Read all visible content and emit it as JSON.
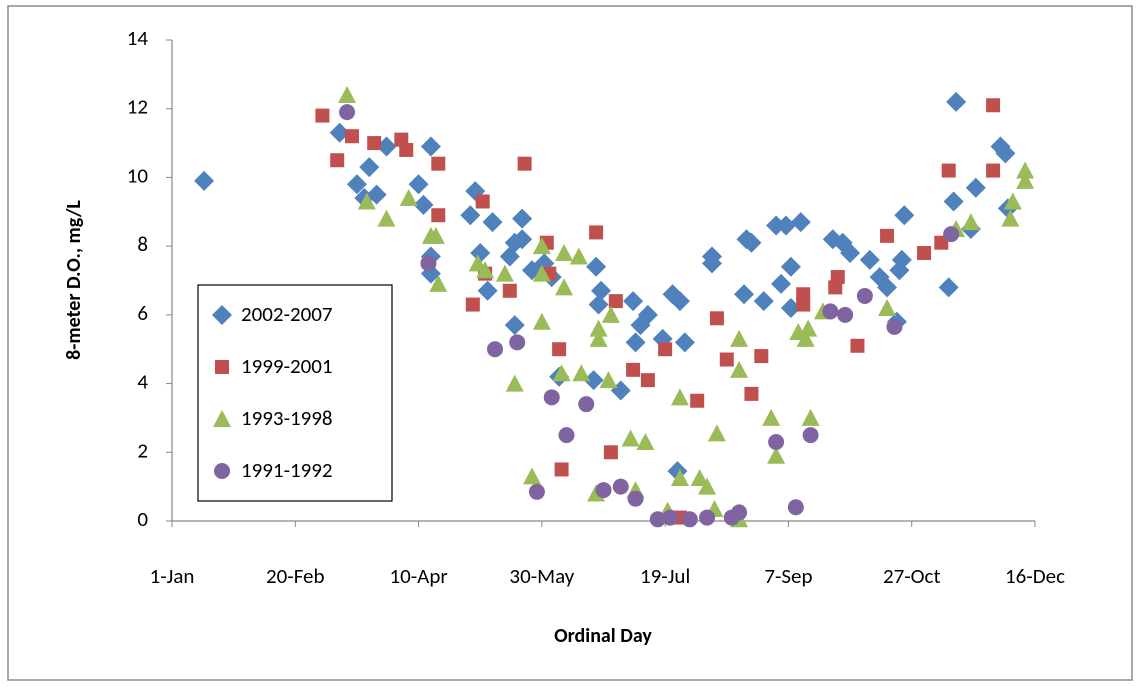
{
  "chart_data": {
    "type": "scatter",
    "x_label": "Ordinal Day",
    "y_label": "8-meter D.O., mg/L",
    "xlim": [
      1,
      351
    ],
    "ylim": [
      0,
      14
    ],
    "xticks": [
      {
        "value": 1,
        "label": "1-Jan"
      },
      {
        "value": 51,
        "label": "20-Feb"
      },
      {
        "value": 101,
        "label": "10-Apr"
      },
      {
        "value": 151,
        "label": "30-May"
      },
      {
        "value": 201,
        "label": "19-Jul"
      },
      {
        "value": 251,
        "label": "7-Sep"
      },
      {
        "value": 301,
        "label": "27-Oct"
      },
      {
        "value": 351,
        "label": "16-Dec"
      }
    ],
    "yticks": [
      0,
      2,
      4,
      6,
      8,
      10,
      12,
      14
    ],
    "grid": false,
    "legend": "left",
    "series": [
      {
        "name": "2002-2007",
        "color": "#4f81bd",
        "marker": "diamond",
        "x": [
          14,
          69,
          76,
          81,
          79,
          84,
          88,
          101,
          103,
          106,
          106,
          106,
          122,
          124,
          126,
          129,
          131,
          138,
          140,
          140,
          143,
          143,
          147,
          152,
          155,
          158,
          173,
          174,
          175,
          172,
          183,
          188,
          189,
          191,
          194,
          200,
          204,
          206,
          207,
          209,
          220,
          220,
          234,
          236,
          233,
          241,
          246,
          248,
          250,
          252,
          252,
          256,
          269,
          273,
          276,
          284,
          288,
          291,
          295,
          296,
          297,
          298,
          316,
          318,
          319,
          325,
          327,
          337,
          339,
          340
        ],
        "values": [
          9.9,
          11.3,
          9.8,
          10.3,
          9.4,
          9.5,
          10.9,
          9.8,
          9.2,
          10.9,
          7.7,
          7.2,
          8.9,
          9.6,
          7.8,
          6.7,
          8.7,
          7.7,
          8.1,
          5.7,
          8.8,
          8.2,
          7.3,
          7.5,
          7.1,
          4.2,
          7.4,
          6.3,
          6.7,
          4.1,
          3.8,
          6.4,
          5.2,
          5.7,
          6.0,
          5.3,
          6.6,
          1.45,
          6.4,
          5.2,
          7.5,
          7.7,
          8.2,
          8.1,
          6.6,
          6.4,
          8.6,
          6.9,
          8.6,
          7.4,
          6.2,
          8.7,
          8.2,
          8.1,
          7.8,
          7.6,
          7.1,
          6.8,
          5.8,
          7.3,
          7.6,
          8.9,
          6.8,
          9.3,
          12.2,
          8.5,
          9.7,
          10.9,
          10.7,
          9.1
        ]
      },
      {
        "name": "1999-2001",
        "color": "#c0504d",
        "marker": "square",
        "x": [
          62,
          68,
          74,
          83,
          94,
          96,
          109,
          109,
          123,
          127,
          128,
          138,
          144,
          153,
          154,
          158,
          159,
          173,
          179,
          181,
          188,
          194,
          201,
          207,
          214,
          222,
          226,
          236,
          240,
          257,
          257,
          270,
          271,
          279,
          291,
          306,
          313,
          316,
          334,
          334
        ],
        "values": [
          11.8,
          10.5,
          11.2,
          11.0,
          11.1,
          10.8,
          10.4,
          8.9,
          6.3,
          9.3,
          7.2,
          6.7,
          10.4,
          8.1,
          7.2,
          5.0,
          1.5,
          8.4,
          2.0,
          6.4,
          4.4,
          4.1,
          5.0,
          0.1,
          3.5,
          5.9,
          4.7,
          3.7,
          4.8,
          6.6,
          6.3,
          6.8,
          7.1,
          5.1,
          8.3,
          7.8,
          8.1,
          10.2,
          10.2,
          12.1
        ]
      },
      {
        "name": "1993-1998",
        "color": "#9bbb59",
        "marker": "triangle",
        "x": [
          72,
          80,
          88,
          97,
          106,
          108,
          109,
          125,
          128,
          136,
          140,
          147,
          151,
          151,
          151,
          159,
          160,
          160,
          166,
          167,
          173,
          174,
          174,
          179,
          178,
          187,
          189,
          193,
          202,
          207,
          207,
          215,
          218,
          221,
          222,
          231,
          231,
          231,
          244,
          246,
          255,
          258,
          259,
          260,
          265,
          291,
          319,
          325,
          341,
          342,
          347,
          347
        ],
        "values": [
          12.4,
          9.3,
          8.8,
          9.4,
          8.3,
          8.3,
          6.9,
          7.5,
          7.3,
          7.2,
          4.0,
          1.3,
          7.2,
          8.0,
          5.8,
          4.3,
          6.8,
          7.8,
          7.7,
          4.3,
          0.8,
          5.6,
          5.3,
          6.0,
          4.1,
          2.4,
          0.9,
          2.3,
          0.3,
          3.6,
          1.25,
          1.25,
          1.0,
          0.35,
          2.55,
          0.05,
          4.4,
          5.3,
          3.0,
          1.9,
          5.5,
          5.3,
          5.6,
          3.0,
          6.1,
          6.2,
          8.5,
          8.7,
          8.8,
          9.3,
          10.2,
          9.9
        ]
      },
      {
        "name": "1991-1992",
        "color": "#8064a2",
        "marker": "circle",
        "x": [
          72,
          105,
          132,
          141,
          155,
          149,
          161,
          169,
          176,
          183,
          189,
          198,
          203,
          211,
          218,
          228,
          231,
          246,
          254,
          260,
          268,
          274,
          282,
          294,
          317
        ],
        "values": [
          11.9,
          7.5,
          5.0,
          5.2,
          3.6,
          0.85,
          2.5,
          3.4,
          0.9,
          1.0,
          0.65,
          0.05,
          0.1,
          0.05,
          0.1,
          0.1,
          0.25,
          2.3,
          0.4,
          2.5,
          6.1,
          6.0,
          6.55,
          5.65,
          8.35
        ]
      }
    ]
  }
}
